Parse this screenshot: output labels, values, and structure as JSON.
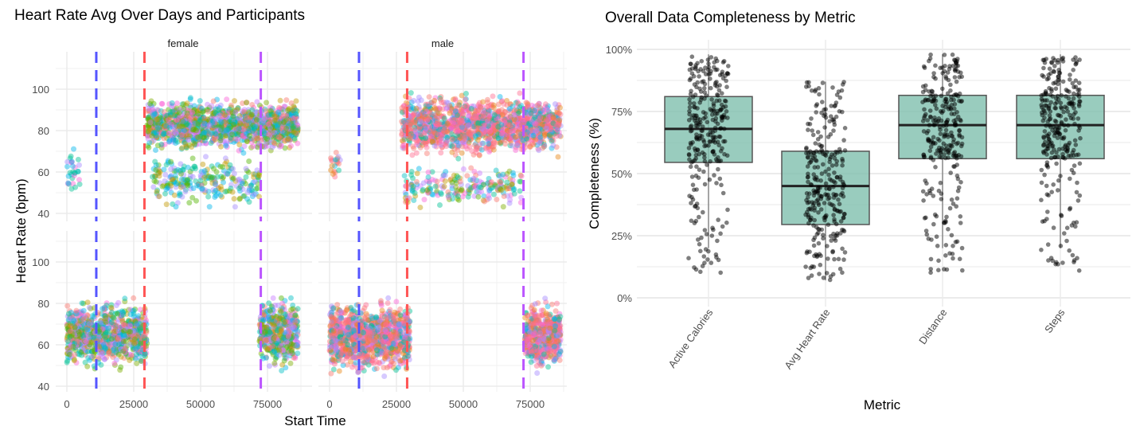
{
  "chart_data": [
    {
      "type": "scatter",
      "title": "Heart Rate Avg Over Days and Participants",
      "xlabel": "Start Time",
      "ylabel": "Heart Rate (bpm)",
      "facets": [
        "female",
        "male"
      ],
      "rows": 2,
      "xlim": [
        0,
        86400
      ],
      "ylim": [
        38,
        115
      ],
      "x_ticks": [
        0,
        25000,
        50000,
        75000
      ],
      "x_tick_labels": [
        "0",
        "25000",
        "50000",
        "75000"
      ],
      "y_ticks": [
        40,
        60,
        80,
        100
      ],
      "y_tick_labels": [
        "40",
        "60",
        "80",
        "100"
      ],
      "grid": true,
      "legend": "none",
      "reference_lines": [
        {
          "x": 11000,
          "color": "#5555ff",
          "style": "dashed"
        },
        {
          "x": 29000,
          "color": "#ff5555",
          "style": "dashed"
        },
        {
          "x": 72500,
          "color": "#bb55ff",
          "style": "dashed"
        }
      ],
      "point_clusters": [
        {
          "facet": "female",
          "row": 0,
          "x_range": [
            30000,
            86400
          ],
          "y_range": [
            68,
            97
          ],
          "n": 1400,
          "palette": "mixed"
        },
        {
          "facet": "female",
          "row": 0,
          "x_range": [
            32000,
            72000
          ],
          "y_range": [
            40,
            70
          ],
          "n": 260,
          "palette": "green"
        },
        {
          "facet": "female",
          "row": 0,
          "x_range": [
            0,
            5000
          ],
          "y_range": [
            47,
            74
          ],
          "n": 30,
          "palette": "teal"
        },
        {
          "facet": "female",
          "row": 1,
          "x_range": [
            0,
            30000
          ],
          "y_range": [
            45,
            85
          ],
          "n": 900,
          "palette": "mixed"
        },
        {
          "facet": "female",
          "row": 1,
          "x_range": [
            72000,
            86400
          ],
          "y_range": [
            46,
            86
          ],
          "n": 450,
          "palette": "mixed"
        },
        {
          "facet": "male",
          "row": 0,
          "x_range": [
            27000,
            86400
          ],
          "y_range": [
            65,
            100
          ],
          "n": 1500,
          "palette": "pink"
        },
        {
          "facet": "male",
          "row": 0,
          "x_range": [
            28000,
            72000
          ],
          "y_range": [
            40,
            65
          ],
          "n": 220,
          "palette": "mixed"
        },
        {
          "facet": "male",
          "row": 0,
          "x_range": [
            0,
            4000
          ],
          "y_range": [
            55,
            72
          ],
          "n": 20,
          "palette": "pink"
        },
        {
          "facet": "male",
          "row": 1,
          "x_range": [
            0,
            30000
          ],
          "y_range": [
            43,
            85
          ],
          "n": 1100,
          "palette": "pink"
        },
        {
          "facet": "male",
          "row": 1,
          "x_range": [
            73000,
            86400
          ],
          "y_range": [
            45,
            84
          ],
          "n": 500,
          "palette": "pink"
        }
      ]
    },
    {
      "type": "box",
      "title": "Overall Data Completeness by Metric",
      "xlabel": "Metric",
      "ylabel": "Completeness (%)",
      "categories": [
        "Active Calories",
        "Avg Heart Rate",
        "Distance",
        "Steps"
      ],
      "ylim": [
        0,
        100
      ],
      "y_ticks": [
        0,
        25,
        50,
        75,
        100
      ],
      "y_tick_labels": [
        "0%",
        "25%",
        "50%",
        "75%",
        "100%"
      ],
      "box_color": "#7fbfae",
      "point_color": "#000000",
      "grid": true,
      "boxes": [
        {
          "min": 20,
          "q1": 54.5,
          "median": 68,
          "q3": 81,
          "max": 98,
          "points_range": [
            10,
            98
          ]
        },
        {
          "min": 7,
          "q1": 29.5,
          "median": 45,
          "q3": 59,
          "max": 87,
          "points_range": [
            7,
            87
          ]
        },
        {
          "min": 20,
          "q1": 56,
          "median": 69.5,
          "q3": 81.5,
          "max": 98,
          "points_range": [
            10,
            98
          ]
        },
        {
          "min": 20,
          "q1": 56,
          "median": 69.5,
          "q3": 81.5,
          "max": 98,
          "points_range": [
            10,
            98
          ]
        }
      ]
    }
  ]
}
